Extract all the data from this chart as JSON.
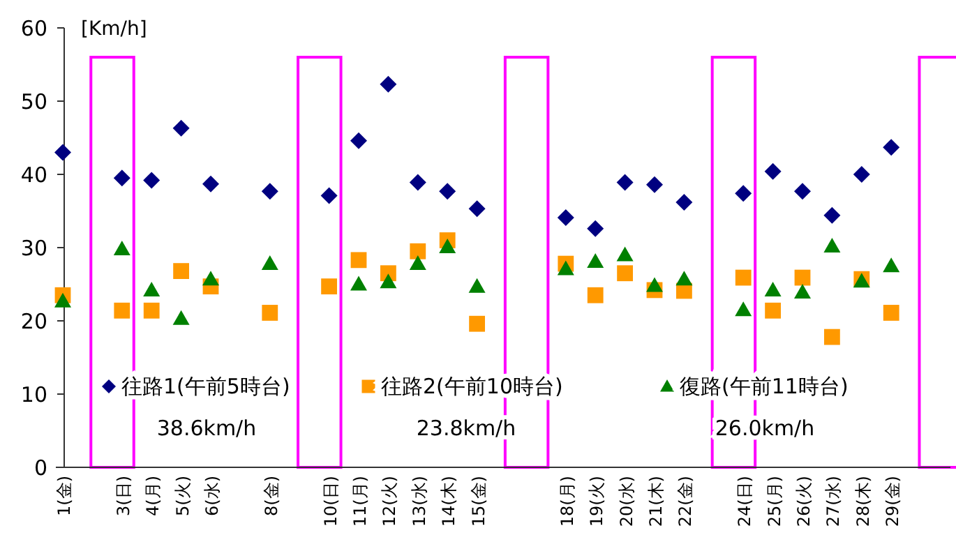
{
  "chart_data": {
    "type": "scatter",
    "ylabel": "[Km/h]",
    "categories": [
      "1(金)",
      null,
      "3(日)",
      "4(月)",
      "5(火)",
      "6(水)",
      null,
      "8(金)",
      null,
      "10(日)",
      "11(月)",
      "12(火)",
      "13(水)",
      "14(木)",
      "15(金)",
      null,
      null,
      "18(月)",
      "19(火)",
      "20(水)",
      "21(木)",
      "22(金)",
      null,
      "24(日)",
      "25(月)",
      "26(火)",
      "27(水)",
      "28(木)",
      "29(金)",
      null,
      null
    ],
    "series": [
      {
        "name": "往路1(午前5時台)",
        "color": "#000080",
        "marker": "diamond",
        "values": [
          43.0,
          null,
          39.5,
          39.2,
          46.3,
          38.7,
          null,
          37.7,
          null,
          37.1,
          44.6,
          52.3,
          38.9,
          37.7,
          35.3,
          null,
          null,
          34.1,
          32.6,
          38.9,
          38.6,
          36.2,
          null,
          37.4,
          40.4,
          37.7,
          34.4,
          40.0,
          43.7,
          null,
          null
        ]
      },
      {
        "name": "往路2(午前10時台)",
        "color": "#ff9900",
        "marker": "square",
        "values": [
          23.5,
          null,
          21.4,
          21.4,
          26.8,
          24.7,
          null,
          21.1,
          null,
          24.7,
          28.3,
          26.5,
          29.5,
          31.0,
          19.6,
          null,
          null,
          27.8,
          23.5,
          26.5,
          24.2,
          24.1,
          null,
          25.9,
          21.4,
          25.9,
          17.8,
          25.7,
          21.1,
          null,
          null
        ]
      },
      {
        "name": "復路(午前11時台)",
        "color": "#008000",
        "marker": "triangle",
        "values": [
          22.7,
          null,
          29.8,
          24.2,
          20.3,
          25.7,
          null,
          27.8,
          null,
          null,
          25.0,
          25.3,
          27.8,
          30.1,
          24.7,
          null,
          null,
          27.1,
          28.1,
          29.0,
          24.8,
          25.7,
          null,
          21.5,
          24.2,
          23.9,
          30.2,
          25.4,
          27.5,
          null,
          null
        ]
      }
    ],
    "ylim": [
      0,
      60
    ],
    "yticks": [
      0,
      10,
      20,
      30,
      40,
      50,
      60
    ],
    "grid": false,
    "legend": "bottom",
    "annotations": [
      "38.6km/h",
      "23.8km/h",
      "26.0km/h"
    ]
  }
}
